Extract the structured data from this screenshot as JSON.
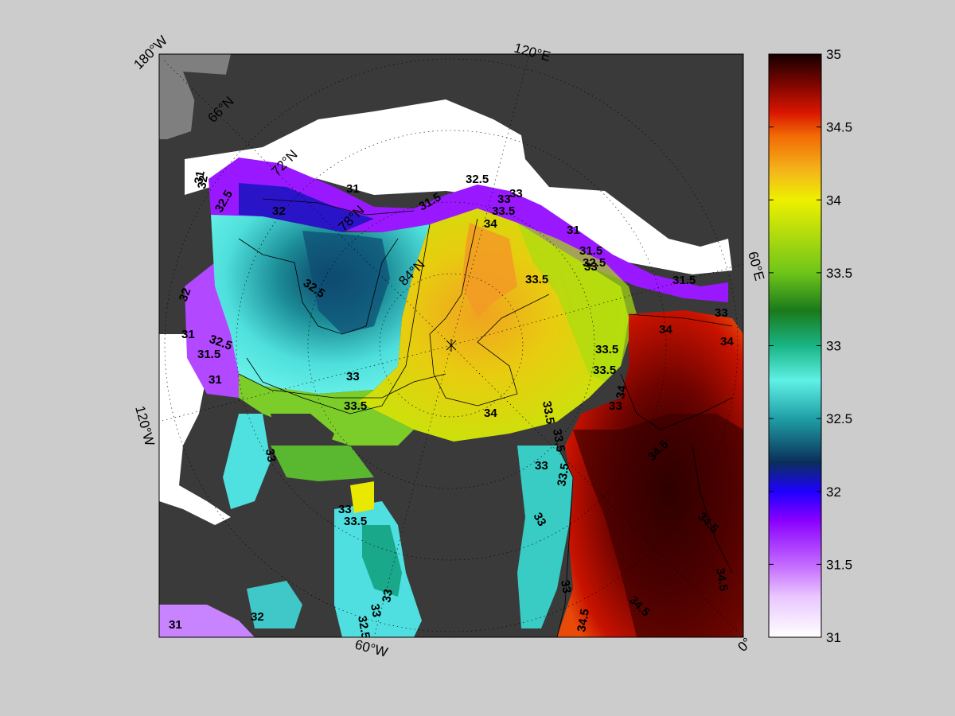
{
  "map": {
    "edge_labels": [
      {
        "id": "lon-180w",
        "text": "180°W"
      },
      {
        "id": "lon-120e",
        "text": "120°E"
      },
      {
        "id": "lon-60e",
        "text": "60°E"
      },
      {
        "id": "lon-120w",
        "text": "120°W"
      },
      {
        "id": "lon-60w",
        "text": "60°W"
      },
      {
        "id": "lon-0",
        "text": "0°"
      }
    ],
    "lat_labels": [
      {
        "id": "lat-66n",
        "text": "66°N"
      },
      {
        "id": "lat-72n",
        "text": "72°N"
      },
      {
        "id": "lat-78n",
        "text": "78°N"
      },
      {
        "id": "lat-84n",
        "text": "84°N"
      }
    ],
    "contour_labels": [
      "31",
      "31",
      "31",
      "31",
      "31",
      "31",
      "31.5",
      "31.5",
      "31.5",
      "31.5",
      "32",
      "32",
      "32",
      "32",
      "32.5",
      "32.5",
      "32.5",
      "32.5",
      "32.5",
      "32.5",
      "33",
      "33",
      "33",
      "33",
      "33",
      "33",
      "33",
      "33",
      "33",
      "33",
      "33",
      "33",
      "33",
      "33.5",
      "33.5",
      "33.5",
      "33.5",
      "33.5",
      "33.5",
      "33.5",
      "33.5",
      "33.5",
      "34",
      "34",
      "34",
      "34",
      "34",
      "34.5",
      "34.5",
      "34.5",
      "34.5",
      "34.5",
      "35"
    ],
    "colors": {
      "background": "#cccccc",
      "land": "#3a3a3a",
      "land_far": "#7f7f7f",
      "ice": "#ffffff",
      "contour_line": "#000000"
    }
  },
  "colorbar": {
    "ticks": [
      "35",
      "34.5",
      "34",
      "33.5",
      "33",
      "32.5",
      "32",
      "31.5",
      "31"
    ],
    "min": 31,
    "max": 35,
    "colormap_stops": [
      "#ffffff",
      "#cf7fff",
      "#9900ff",
      "#1e00ff",
      "#0a3d6b",
      "#1e9ba0",
      "#55eee0",
      "#16b07a",
      "#1c7a1e",
      "#74c51c",
      "#e3ef00",
      "#f2b91a",
      "#f26a05",
      "#d91200",
      "#7a0500",
      "#140000"
    ]
  }
}
